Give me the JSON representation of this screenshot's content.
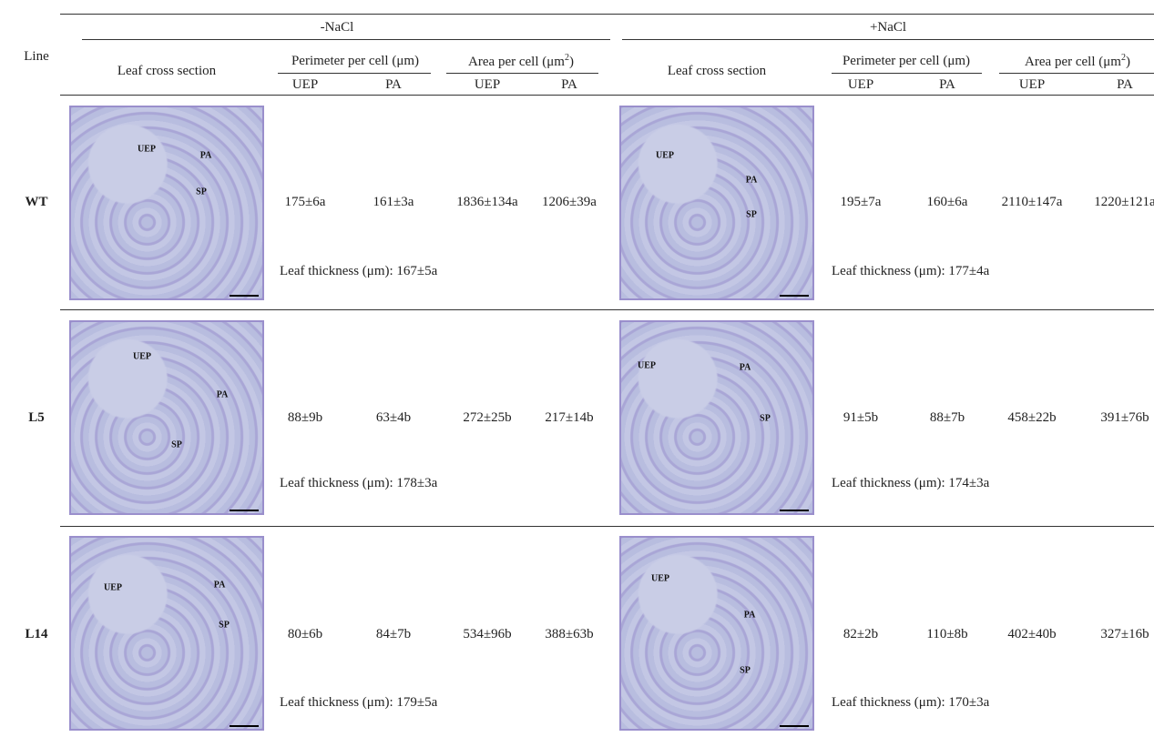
{
  "header": {
    "line": "Line",
    "groups": [
      {
        "title": "-NaCl",
        "leaf": "Leaf cross section",
        "perimeter": "Perimeter per cell (μm)",
        "area": "Area per cell (μm",
        "area_sup": "2",
        "area_close": ")",
        "sub": [
          "UEP",
          "PA",
          "UEP",
          "PA"
        ]
      },
      {
        "title": "+NaCl",
        "leaf": "Leaf cross section",
        "perimeter": "Perimeter per cell (μm)",
        "area": "Area per cell (μm",
        "area_sup": "2",
        "area_close": ")",
        "sub": [
          "UEP",
          "PA",
          "UEP",
          "PA"
        ]
      }
    ]
  },
  "rows": [
    {
      "line": "WT",
      "groups": [
        {
          "image_labels": [
            "UEP",
            "PA",
            "SP"
          ],
          "values": [
            "175±6a",
            "161±3a",
            "1836±134a",
            "1206±39a"
          ],
          "thickness": "Leaf thickness (μm): 167±5a"
        },
        {
          "image_labels": [
            "UEP",
            "PA",
            "SP"
          ],
          "values": [
            "195±7a",
            "160±6a",
            "2110±147a",
            "1220±121a"
          ],
          "thickness": "Leaf thickness (μm): 177±4a"
        }
      ]
    },
    {
      "line": "L5",
      "groups": [
        {
          "image_labels": [
            "UEP",
            "PA",
            "SP"
          ],
          "values": [
            "88±9b",
            "63±4b",
            "272±25b",
            "217±14b"
          ],
          "thickness": "Leaf thickness (μm): 178±3a"
        },
        {
          "image_labels": [
            "UEP",
            "PA",
            "SP"
          ],
          "values": [
            "91±5b",
            "88±7b",
            "458±22b",
            "391±76b"
          ],
          "thickness": "Leaf thickness (μm): 174±3a"
        }
      ]
    },
    {
      "line": "L14",
      "groups": [
        {
          "image_labels": [
            "UEP",
            "PA",
            "SP"
          ],
          "values": [
            "80±6b",
            "84±7b",
            "534±96b",
            "388±63b"
          ],
          "thickness": "Leaf thickness (μm): 179±5a"
        },
        {
          "image_labels": [
            "UEP",
            "PA",
            "SP"
          ],
          "values": [
            "82±2b",
            "110±8b",
            "402±40b",
            "327±16b"
          ],
          "thickness": "Leaf thickness (μm): 170±3a"
        }
      ]
    }
  ]
}
